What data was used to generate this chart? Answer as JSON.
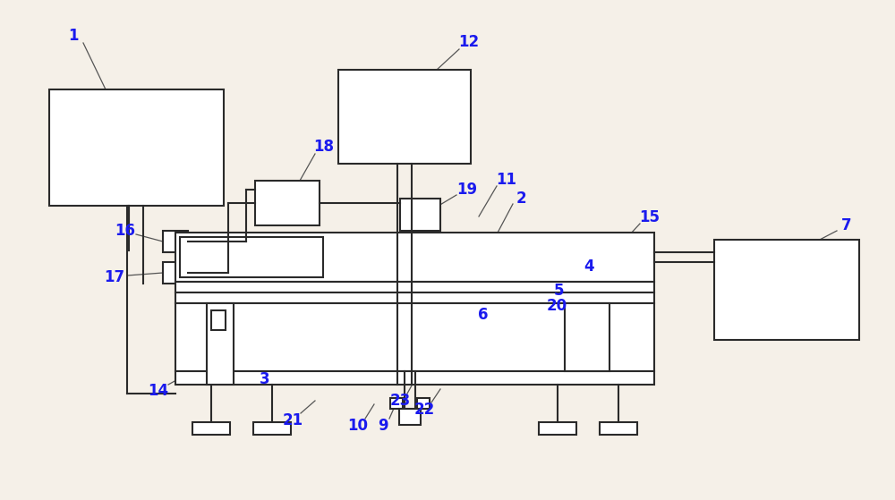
{
  "bg_color": "#f5f0e8",
  "line_color": "#2a2a2a",
  "label_color": "#1a1aee",
  "figsize": [
    10.0,
    5.59
  ],
  "dpi": 100
}
